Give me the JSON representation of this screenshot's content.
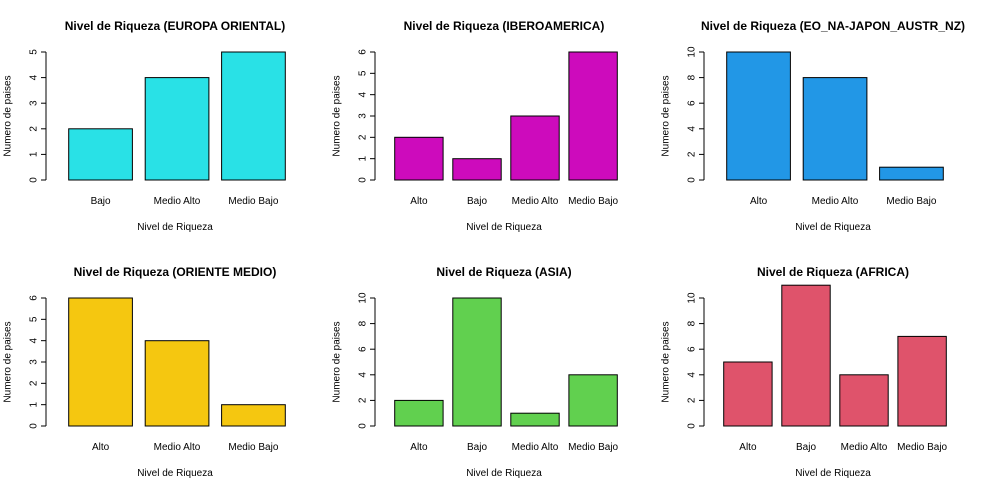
{
  "chart_data": [
    {
      "type": "bar",
      "title": "Nivel de Riqueza (EUROPA ORIENTAL)",
      "xlabel": "Nivel de Riqueza",
      "ylabel": "Numero de paises",
      "categories": [
        "Bajo",
        "Medio Alto",
        "Medio Bajo"
      ],
      "values": [
        2,
        4,
        5
      ],
      "yticks": [
        0,
        1,
        2,
        3,
        4,
        5
      ],
      "ylim": [
        0,
        5
      ],
      "color": "#29E1E6"
    },
    {
      "type": "bar",
      "title": "Nivel de Riqueza (IBEROAMERICA)",
      "xlabel": "Nivel de Riqueza",
      "ylabel": "Numero de paises",
      "categories": [
        "Alto",
        "Bajo",
        "Medio Alto",
        "Medio Bajo"
      ],
      "values": [
        2,
        1,
        3,
        6
      ],
      "yticks": [
        0,
        1,
        2,
        3,
        4,
        5,
        6
      ],
      "ylim": [
        0,
        6
      ],
      "color": "#CD0BBC"
    },
    {
      "type": "bar",
      "title": "Nivel de Riqueza (EO_NA-JAPON_AUSTR_NZ)",
      "xlabel": "Nivel de Riqueza",
      "ylabel": "Numero de paises",
      "categories": [
        "Alto",
        "Medio Alto",
        "Medio Bajo"
      ],
      "values": [
        10,
        8,
        1
      ],
      "yticks": [
        0,
        2,
        4,
        6,
        8,
        10
      ],
      "ylim": [
        0,
        10
      ],
      "color": "#2297E6"
    },
    {
      "type": "bar",
      "title": "Nivel de Riqueza (ORIENTE MEDIO)",
      "xlabel": "Nivel de Riqueza",
      "ylabel": "Numero de paises",
      "categories": [
        "Alto",
        "Medio Alto",
        "Medio Bajo"
      ],
      "values": [
        6,
        4,
        1
      ],
      "yticks": [
        0,
        1,
        2,
        3,
        4,
        5,
        6
      ],
      "ylim": [
        0,
        6
      ],
      "color": "#F5C710"
    },
    {
      "type": "bar",
      "title": "Nivel de Riqueza (ASIA)",
      "xlabel": "Nivel de Riqueza",
      "ylabel": "Numero de paises",
      "categories": [
        "Alto",
        "Bajo",
        "Medio Alto",
        "Medio Bajo"
      ],
      "values": [
        2,
        10,
        1,
        4
      ],
      "yticks": [
        0,
        2,
        4,
        6,
        8,
        10
      ],
      "ylim": [
        0,
        10
      ],
      "color": "#61D04F"
    },
    {
      "type": "bar",
      "title": "Nivel de Riqueza (AFRICA)",
      "xlabel": "Nivel de Riqueza",
      "ylabel": "Numero de paises",
      "categories": [
        "Alto",
        "Bajo",
        "Medio Alto",
        "Medio Bajo"
      ],
      "values": [
        5,
        11,
        4,
        7
      ],
      "yticks": [
        0,
        2,
        4,
        6,
        8,
        10
      ],
      "ylim": [
        0,
        11
      ],
      "color": "#DF536B"
    }
  ]
}
